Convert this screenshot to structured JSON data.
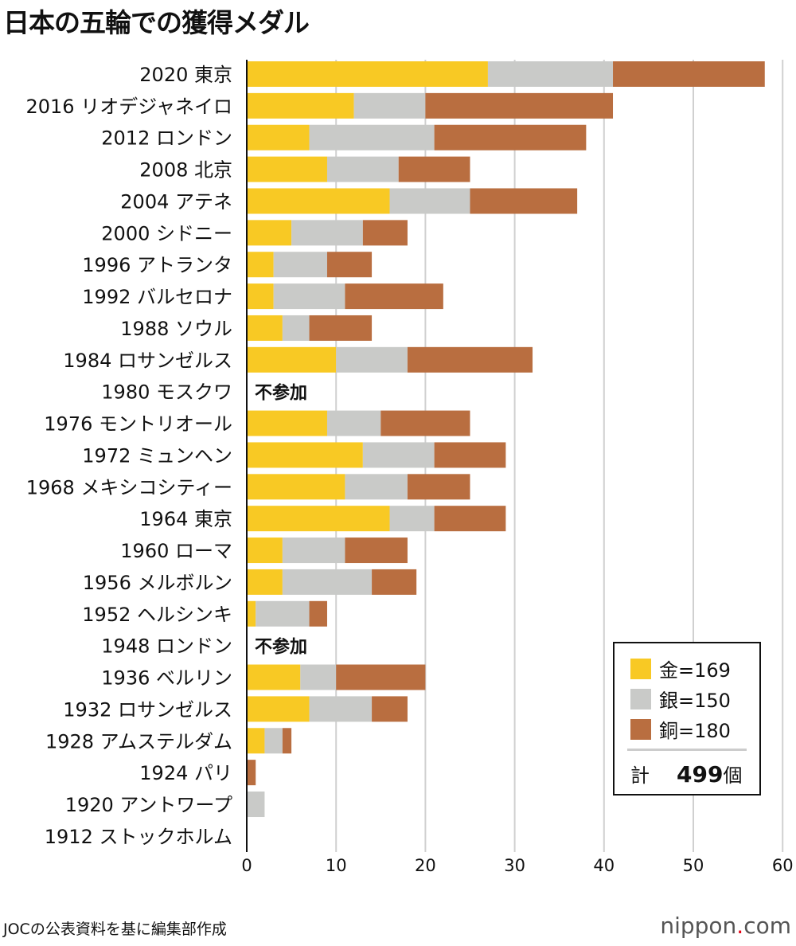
{
  "title": "日本の五輪での獲得メダル",
  "chart_data": {
    "type": "bar",
    "stacked": true,
    "orientation": "horizontal",
    "categories": [
      "2020 東京",
      "2016 リオデジャネイロ",
      "2012 ロンドン",
      "2008 北京",
      "2004 アテネ",
      "2000 シドニー",
      "1996 アトランタ",
      "1992 バルセロナ",
      "1988 ソウル",
      "1984 ロサンゼルス",
      "1980 モスクワ",
      "1976 モントリオール",
      "1972 ミュンヘン",
      "1968 メキシコシティー",
      "1964 東京",
      "1960 ローマ",
      "1956 メルボルン",
      "1952 ヘルシンキ",
      "1948 ロンドン",
      "1936 ベルリン",
      "1932 ロサンゼルス",
      "1928 アムステルダム",
      "1924 パリ",
      "1920 アントワープ",
      "1912 ストックホルム"
    ],
    "series": [
      {
        "name": "金",
        "color": "#f8c924",
        "values": [
          27,
          12,
          7,
          9,
          16,
          5,
          3,
          3,
          4,
          10,
          null,
          9,
          13,
          11,
          16,
          4,
          4,
          1,
          null,
          6,
          7,
          2,
          0,
          0,
          0
        ]
      },
      {
        "name": "銀",
        "color": "#c9cac8",
        "values": [
          14,
          8,
          14,
          8,
          9,
          8,
          6,
          8,
          3,
          8,
          null,
          6,
          8,
          7,
          5,
          7,
          10,
          6,
          null,
          4,
          7,
          2,
          0,
          2,
          0
        ]
      },
      {
        "name": "銅",
        "color": "#b96e40",
        "values": [
          17,
          21,
          17,
          8,
          12,
          5,
          5,
          11,
          7,
          14,
          null,
          10,
          8,
          7,
          8,
          7,
          5,
          2,
          null,
          10,
          4,
          1,
          1,
          0,
          0
        ]
      }
    ],
    "annotations": {
      "not_participating": "不参加"
    },
    "xlim": [
      0,
      60
    ],
    "xticks": [
      "0",
      "10",
      "20",
      "30",
      "40",
      "50",
      "60"
    ],
    "grid": true,
    "legend": {
      "position": "bottom-right",
      "items": [
        "金=169",
        "銀=150",
        "銅=180"
      ],
      "total_label": "計",
      "total_value": "499",
      "total_unit": "個"
    }
  },
  "footer": {
    "source": "JOCの公表資料を基に編集部作成",
    "brand_main": "nippon",
    "brand_dot": ".",
    "brand_tail": "com"
  }
}
